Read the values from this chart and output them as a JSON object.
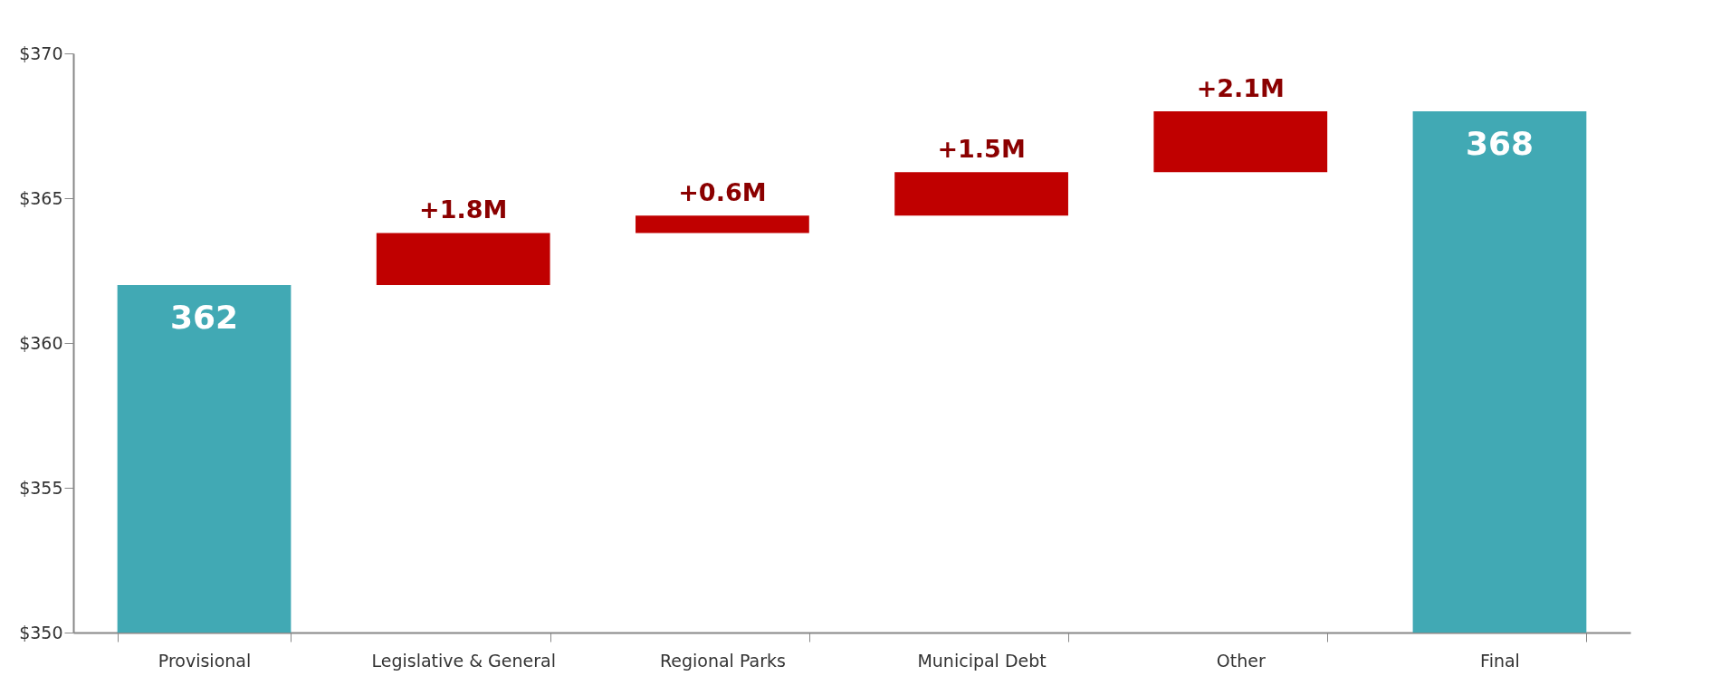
{
  "chart_data": {
    "type": "bar",
    "categories": [
      "Provisional",
      "Legislative & General",
      "Regional Parks",
      "Municipal Debt",
      "Other",
      "Final"
    ],
    "values": [
      12,
      1.8,
      0.6,
      1.5,
      2.1,
      18
    ],
    "base": [
      350,
      362,
      363.8,
      364.4,
      365.9,
      350
    ],
    "colors": [
      "#41a9b4",
      "#c00000",
      "#c00000",
      "#c00000",
      "#c00000",
      "#41a9b4"
    ],
    "value_labels": [
      "362",
      "+1.8M",
      "+0.6M",
      "+1.5M",
      "+2.1M",
      "368"
    ],
    "ylim": [
      350,
      370
    ],
    "yticks": [
      {
        "value": 350,
        "label": "$350"
      },
      {
        "value": 355,
        "label": "$355"
      },
      {
        "value": 360,
        "label": "$360"
      },
      {
        "value": 365,
        "label": "$365"
      },
      {
        "value": 370,
        "label": "$370"
      }
    ]
  }
}
